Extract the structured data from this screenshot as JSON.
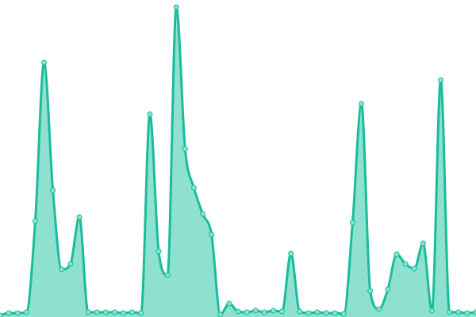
{
  "chart_data": {
    "type": "area",
    "title": "",
    "xlabel": "",
    "ylabel": "",
    "x": [
      0,
      1,
      2,
      3,
      4,
      5,
      6,
      7,
      8,
      9,
      10,
      11,
      12,
      13,
      14,
      15,
      16,
      17,
      18,
      19,
      20,
      21,
      22,
      23,
      24,
      25,
      26,
      27,
      28,
      29,
      30,
      31,
      32,
      33,
      34,
      35,
      36,
      37,
      38,
      39,
      40,
      41,
      42,
      43,
      44,
      45,
      46,
      47,
      48,
      49,
      50,
      51,
      52,
      53,
      54
    ],
    "series": [
      {
        "values": [
          2,
          5,
          5,
          6,
          121,
          321,
          160,
          60,
          67,
          126,
          6,
          6,
          6,
          6,
          5,
          6,
          5,
          256,
          83,
          53,
          391,
          212,
          163,
          130,
          104,
          3,
          17,
          7,
          6,
          8,
          6,
          8,
          7,
          80,
          7,
          5,
          6,
          5,
          5,
          4,
          119,
          269,
          33,
          10,
          35,
          79,
          67,
          61,
          93,
          8,
          299,
          6,
          6,
          5,
          6
        ]
      }
    ],
    "xlim": [
      0,
      54
    ],
    "ylim": [
      0,
      400
    ],
    "smooth": true,
    "markers": true,
    "grid": false,
    "axes_visible": false,
    "colors": {
      "line": "#1abc9c",
      "fill": "#8ee0cf",
      "marker_fill": "#8ee0cf"
    }
  }
}
